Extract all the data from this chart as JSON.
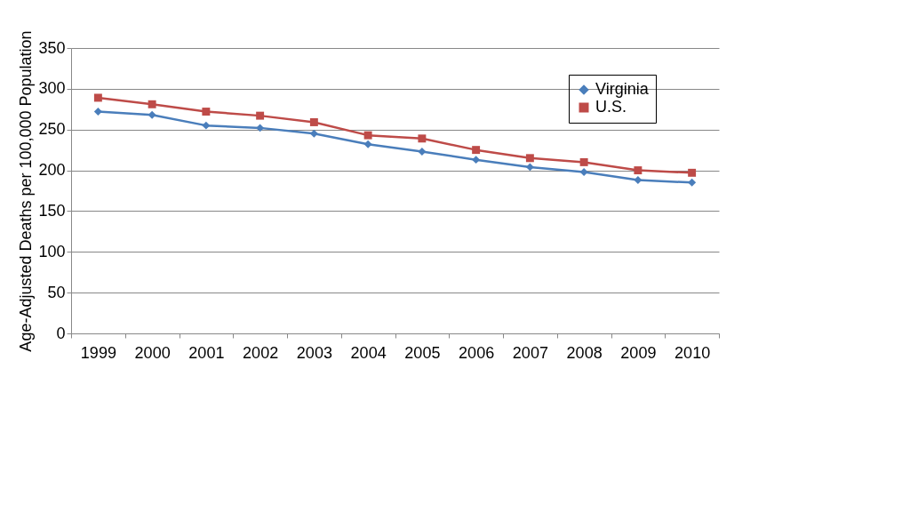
{
  "chart_data": {
    "type": "line",
    "ylabel": "Age-Adjusted Deaths per 100,000 Population",
    "categories": [
      "1999",
      "2000",
      "2001",
      "2002",
      "2003",
      "2004",
      "2005",
      "2006",
      "2007",
      "2008",
      "2009",
      "2010"
    ],
    "series": [
      {
        "name": "Virginia",
        "color": "#4a7ebb",
        "marker": "diamond",
        "values": [
          272,
          268,
          255,
          252,
          245,
          232,
          223,
          213,
          204,
          198,
          188,
          185
        ]
      },
      {
        "name": "U.S.",
        "color": "#be4b48",
        "marker": "square",
        "values": [
          289,
          281,
          272,
          267,
          259,
          243,
          239,
          225,
          215,
          210,
          200,
          197
        ]
      }
    ],
    "ylim": [
      0,
      350
    ],
    "yticks": [
      0,
      50,
      100,
      150,
      200,
      250,
      300,
      350
    ],
    "grid": "y",
    "legend": "top right",
    "line_style": "solid"
  }
}
